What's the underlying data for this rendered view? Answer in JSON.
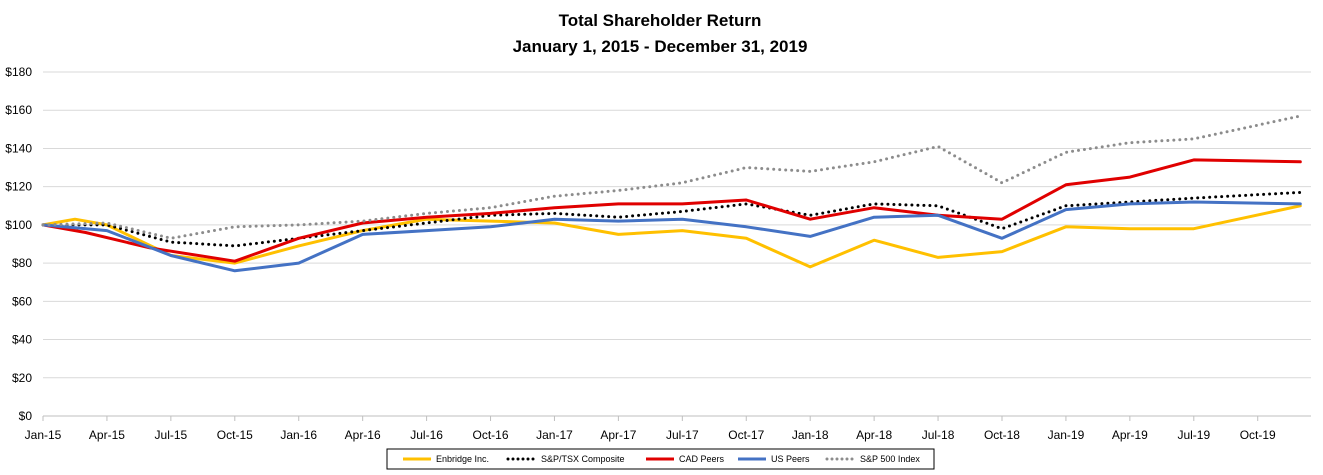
{
  "chart_data": {
    "type": "line",
    "title": "Total Shareholder Return",
    "subtitle": "January 1, 2015 - December 31, 2019",
    "xlabel": "",
    "ylabel": "",
    "ylim": [
      0,
      180
    ],
    "y_ticks": [
      0,
      20,
      40,
      60,
      80,
      100,
      120,
      140,
      160,
      180
    ],
    "y_tick_labels": [
      "$0",
      "$20",
      "$40",
      "$60",
      "$80",
      "$100",
      "$120",
      "$140",
      "$160",
      "$180"
    ],
    "x_tick_labels": [
      "Jan-15",
      "Apr-15",
      "Jul-15",
      "Oct-15",
      "Jan-16",
      "Apr-16",
      "Jul-16",
      "Oct-16",
      "Jan-17",
      "Apr-17",
      "Jul-17",
      "Oct-17",
      "Jan-18",
      "Apr-18",
      "Jul-18",
      "Oct-18",
      "Jan-19",
      "Apr-19",
      "Jul-19",
      "Oct-19"
    ],
    "x_range_months": [
      0,
      59.5
    ],
    "grid": true,
    "legend_position": "bottom",
    "series": [
      {
        "name": "Enbridge Inc.",
        "color": "#FFC000",
        "style": "solid",
        "points": [
          [
            0,
            100
          ],
          [
            1.5,
            103
          ],
          [
            3,
            100
          ],
          [
            6,
            84
          ],
          [
            9,
            80
          ],
          [
            12,
            89
          ],
          [
            15,
            97
          ],
          [
            18,
            103
          ],
          [
            21,
            102
          ],
          [
            24,
            101
          ],
          [
            27,
            95
          ],
          [
            30,
            97
          ],
          [
            33,
            93
          ],
          [
            36,
            78
          ],
          [
            39,
            92
          ],
          [
            42,
            83
          ],
          [
            45,
            86
          ],
          [
            48,
            99
          ],
          [
            51,
            98
          ],
          [
            54,
            98
          ],
          [
            59,
            110
          ]
        ]
      },
      {
        "name": "S&P/TSX Composite",
        "color": "#000000",
        "style": "dotted",
        "points": [
          [
            0,
            100
          ],
          [
            3,
            100
          ],
          [
            6,
            91
          ],
          [
            9,
            89
          ],
          [
            12,
            93
          ],
          [
            15,
            97
          ],
          [
            18,
            101
          ],
          [
            21,
            105
          ],
          [
            24,
            106
          ],
          [
            27,
            104
          ],
          [
            30,
            107
          ],
          [
            33,
            111
          ],
          [
            36,
            105
          ],
          [
            39,
            111
          ],
          [
            42,
            110
          ],
          [
            45,
            98
          ],
          [
            48,
            110
          ],
          [
            51,
            112
          ],
          [
            54,
            114
          ],
          [
            59,
            117
          ]
        ]
      },
      {
        "name": "CAD Peers",
        "color": "#E00000",
        "style": "solid",
        "points": [
          [
            0,
            100
          ],
          [
            2,
            96
          ],
          [
            5,
            88
          ],
          [
            9,
            81
          ],
          [
            12,
            93
          ],
          [
            15,
            101
          ],
          [
            18,
            104
          ],
          [
            21,
            106
          ],
          [
            24,
            109
          ],
          [
            27,
            111
          ],
          [
            30,
            111
          ],
          [
            33,
            113
          ],
          [
            36,
            103
          ],
          [
            39,
            109
          ],
          [
            42,
            105
          ],
          [
            45,
            103
          ],
          [
            48,
            121
          ],
          [
            51,
            125
          ],
          [
            54,
            134
          ],
          [
            59,
            133
          ]
        ]
      },
      {
        "name": "US Peers",
        "color": "#4472C4",
        "style": "solid",
        "points": [
          [
            0,
            100
          ],
          [
            3,
            97
          ],
          [
            6,
            84
          ],
          [
            9,
            76
          ],
          [
            12,
            80
          ],
          [
            15,
            95
          ],
          [
            18,
            97
          ],
          [
            21,
            99
          ],
          [
            24,
            103
          ],
          [
            27,
            102
          ],
          [
            30,
            103
          ],
          [
            33,
            99
          ],
          [
            36,
            94
          ],
          [
            39,
            104
          ],
          [
            42,
            105
          ],
          [
            45,
            93
          ],
          [
            48,
            108
          ],
          [
            51,
            111
          ],
          [
            54,
            112
          ],
          [
            59,
            111
          ]
        ]
      },
      {
        "name": "S&P 500 Index",
        "color": "#8C8C8C",
        "style": "dotted",
        "points": [
          [
            0,
            100
          ],
          [
            3,
            101
          ],
          [
            6,
            93
          ],
          [
            9,
            99
          ],
          [
            12,
            100
          ],
          [
            15,
            102
          ],
          [
            18,
            106
          ],
          [
            21,
            109
          ],
          [
            24,
            115
          ],
          [
            27,
            118
          ],
          [
            30,
            122
          ],
          [
            33,
            130
          ],
          [
            36,
            128
          ],
          [
            39,
            133
          ],
          [
            42,
            141
          ],
          [
            45,
            122
          ],
          [
            48,
            138
          ],
          [
            51,
            143
          ],
          [
            54,
            145
          ],
          [
            59,
            157
          ]
        ]
      }
    ]
  }
}
